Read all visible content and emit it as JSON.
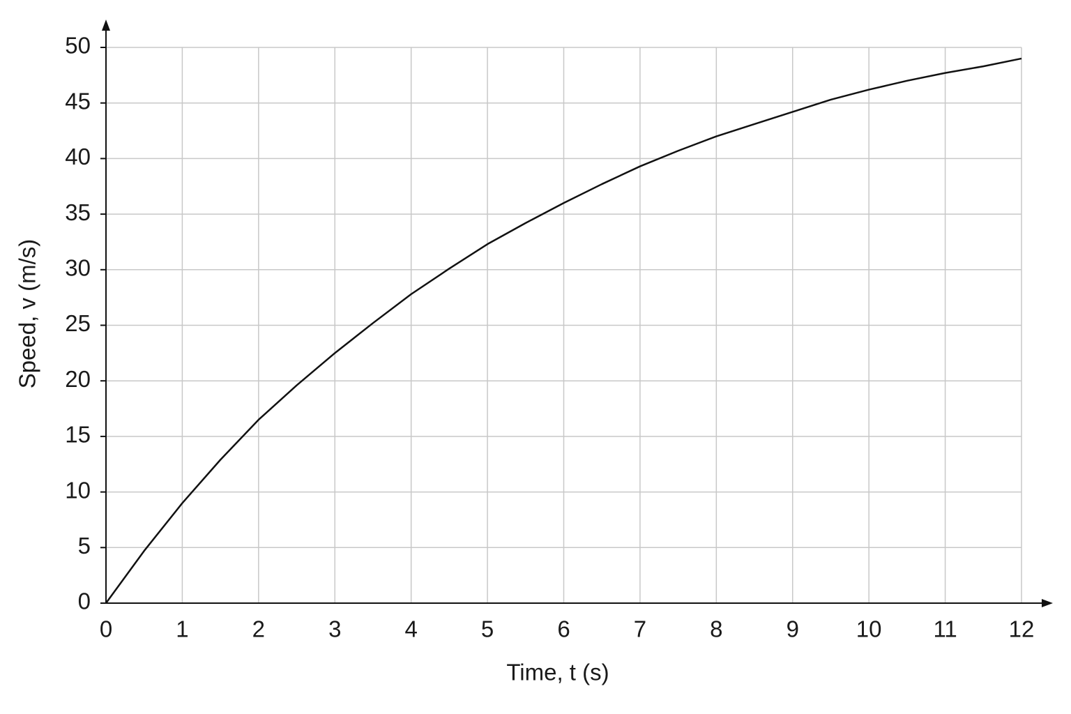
{
  "chart_data": {
    "type": "line",
    "xlabel": "Time, t (s)",
    "ylabel": "Speed, v (m/s)",
    "x": [
      0,
      0.5,
      1,
      1.5,
      2,
      2.5,
      3,
      3.5,
      4,
      4.5,
      5,
      5.5,
      6,
      6.5,
      7,
      7.5,
      8,
      8.5,
      9,
      9.5,
      10,
      10.5,
      11,
      11.5,
      12
    ],
    "series": [
      {
        "color": "#111111",
        "values": [
          0,
          4.7,
          9,
          12.9,
          16.5,
          19.6,
          22.5,
          25.2,
          27.8,
          30.1,
          32.3,
          34.2,
          36,
          37.7,
          39.3,
          40.7,
          42,
          43.1,
          44.2,
          45.3,
          46.2,
          47,
          47.7,
          48.3,
          49
        ]
      }
    ],
    "xlim": [
      0,
      12
    ],
    "ylim": [
      0,
      50
    ],
    "xticks": [
      0,
      1,
      2,
      3,
      4,
      5,
      6,
      7,
      8,
      9,
      10,
      11,
      12
    ],
    "yticks": [
      0,
      5,
      10,
      15,
      20,
      25,
      30,
      35,
      40,
      45,
      50
    ],
    "grid": true
  }
}
